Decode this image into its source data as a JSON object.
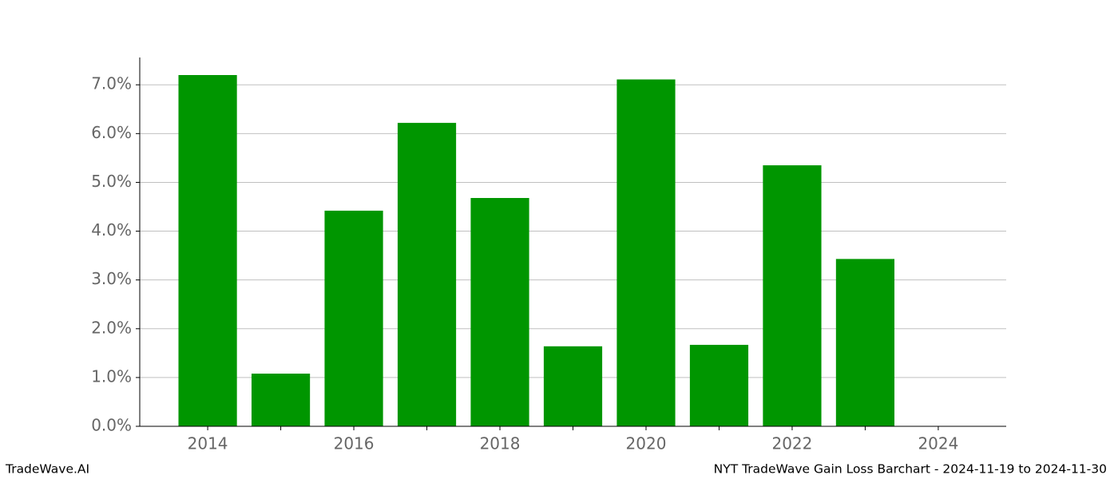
{
  "chart_data": {
    "type": "bar",
    "x": [
      2014,
      2015,
      2016,
      2017,
      2018,
      2019,
      2020,
      2021,
      2022,
      2023
    ],
    "values": [
      7.2,
      1.08,
      4.42,
      6.22,
      4.68,
      1.64,
      7.11,
      1.67,
      5.35,
      3.43
    ],
    "color": "#009600",
    "xlim": [
      2013.07,
      2024.93
    ],
    "xticks": [
      2014,
      2016,
      2018,
      2020,
      2022,
      2024
    ],
    "xminorticks": [
      2015,
      2017,
      2019,
      2021,
      2023
    ],
    "ylim": [
      0,
      7.56
    ],
    "yticks": [
      {
        "value": 0,
        "label": "0.0%"
      },
      {
        "value": 1,
        "label": "1.0%"
      },
      {
        "value": 2,
        "label": "2.0%"
      },
      {
        "value": 3,
        "label": "3.0%"
      },
      {
        "value": 4,
        "label": "4.0%"
      },
      {
        "value": 5,
        "label": "5.0%"
      },
      {
        "value": 6,
        "label": "6.0%"
      },
      {
        "value": 7,
        "label": "7.0%"
      }
    ],
    "grid": true,
    "watermark": "TradeWave.AI",
    "caption": "NYT TradeWave Gain Loss Barchart - 2024-11-19 to 2024-11-30"
  }
}
